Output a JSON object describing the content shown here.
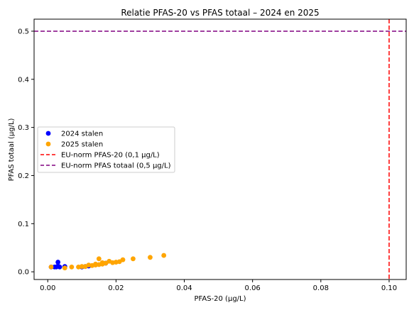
{
  "chart_data": {
    "type": "scatter",
    "title": "Relatie PFAS-20 vs PFAS totaal – 2024 en 2025",
    "xlabel": "PFAS-20 (µg/L)",
    "ylabel": "PFAS totaal (µg/L)",
    "xlim": [
      -0.004,
      0.105
    ],
    "ylim": [
      -0.016,
      0.525
    ],
    "xticks": [
      0.0,
      0.02,
      0.04,
      0.06,
      0.08,
      0.1
    ],
    "xtick_labels": [
      "0.00",
      "0.02",
      "0.04",
      "0.06",
      "0.08",
      "0.10"
    ],
    "yticks": [
      0.0,
      0.1,
      0.2,
      0.3,
      0.4,
      0.5
    ],
    "ytick_labels": [
      "0.0",
      "0.1",
      "0.2",
      "0.3",
      "0.4",
      "0.5"
    ],
    "grid": false,
    "legend_position": "center-left",
    "series": [
      {
        "name": "2024 stalen",
        "kind": "scatter",
        "color": "#0000ff",
        "points": [
          [
            0.001,
            0.01
          ],
          [
            0.002,
            0.01
          ],
          [
            0.0025,
            0.01
          ],
          [
            0.003,
            0.012
          ],
          [
            0.003,
            0.02
          ],
          [
            0.0035,
            0.01
          ],
          [
            0.005,
            0.011
          ],
          [
            0.005,
            0.009
          ],
          [
            0.01,
            0.01
          ],
          [
            0.011,
            0.011
          ],
          [
            0.012,
            0.012
          ],
          [
            0.017,
            0.018
          ]
        ]
      },
      {
        "name": "2025 stalen",
        "kind": "scatter",
        "color": "#ffa500",
        "points": [
          [
            0.001,
            0.01
          ],
          [
            0.005,
            0.008
          ],
          [
            0.007,
            0.01
          ],
          [
            0.009,
            0.01
          ],
          [
            0.01,
            0.011
          ],
          [
            0.011,
            0.011
          ],
          [
            0.012,
            0.014
          ],
          [
            0.013,
            0.013
          ],
          [
            0.014,
            0.016
          ],
          [
            0.014,
            0.014
          ],
          [
            0.015,
            0.027
          ],
          [
            0.015,
            0.015
          ],
          [
            0.016,
            0.016
          ],
          [
            0.016,
            0.019
          ],
          [
            0.017,
            0.018
          ],
          [
            0.018,
            0.022
          ],
          [
            0.019,
            0.019
          ],
          [
            0.02,
            0.02
          ],
          [
            0.021,
            0.021
          ],
          [
            0.022,
            0.025
          ],
          [
            0.025,
            0.027
          ],
          [
            0.03,
            0.03
          ],
          [
            0.034,
            0.034
          ]
        ]
      },
      {
        "name": "EU-norm PFAS-20 (0,1 µg/L)",
        "kind": "vline",
        "value": 0.1,
        "color": "#ff0000",
        "dash": true
      },
      {
        "name": "EU-norm PFAS totaal (0,5 µg/L)",
        "kind": "hline",
        "value": 0.5,
        "color": "#800080",
        "dash": true
      }
    ]
  }
}
